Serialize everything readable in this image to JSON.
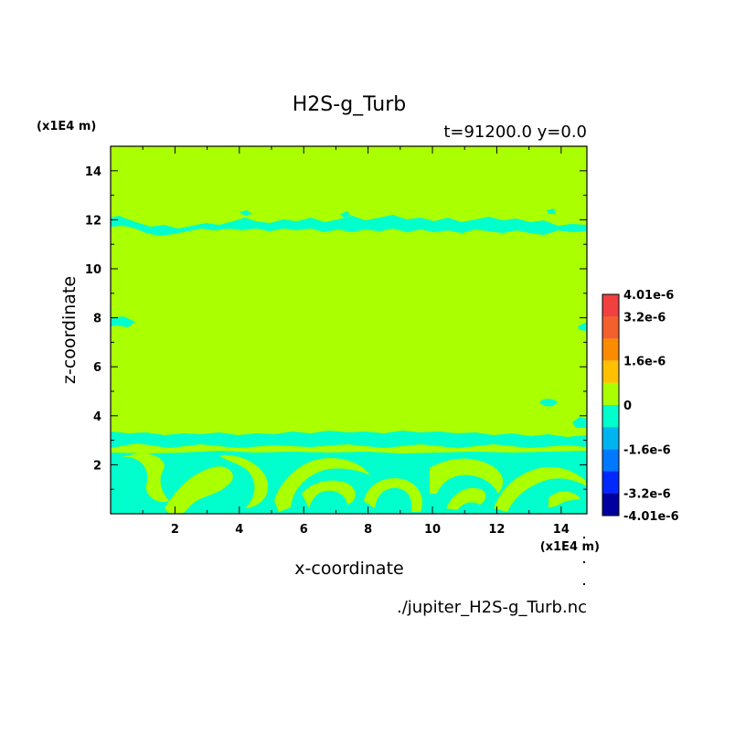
{
  "chart_data": {
    "type": "heatmap",
    "title": "H2S-g_Turb",
    "subtitle": "t=91200.0 y=0.0",
    "xlabel": "x-coordinate",
    "ylabel": "z-coordinate",
    "x_unit": "(x1E4 m)",
    "y_unit": "(x1E4 m)",
    "source": "./jupiter_H2S-g_Turb.nc",
    "xlim": [
      0,
      14.8
    ],
    "ylim": [
      0,
      15
    ],
    "x_ticks": [
      2,
      4,
      6,
      8,
      10,
      12,
      14
    ],
    "y_ticks": [
      2,
      4,
      6,
      8,
      10,
      12,
      14
    ],
    "grid": false,
    "background_level": 0,
    "colorbar": {
      "min": -4.01e-06,
      "max": 4.01e-06,
      "labels": [
        "4.01e-6",
        "3.2e-6",
        "1.6e-6",
        "0",
        "-1.6e-6",
        "-3.2e-6",
        "-4.01e-6"
      ],
      "label_values": [
        4.01e-06,
        3.2e-06,
        1.6e-06,
        0,
        -1.6e-06,
        -3.2e-06,
        -4.01e-06
      ],
      "bands": [
        {
          "from": 3.2e-06,
          "to": 4.01e-06,
          "color": "#f04040"
        },
        {
          "from": 2.4e-06,
          "to": 3.2e-06,
          "color": "#f4602c"
        },
        {
          "from": 1.6e-06,
          "to": 2.4e-06,
          "color": "#fb8c00"
        },
        {
          "from": 8e-07,
          "to": 1.6e-06,
          "color": "#ffc000"
        },
        {
          "from": 0,
          "to": 8e-07,
          "color": "#aaff00"
        },
        {
          "from": -8e-07,
          "to": 0,
          "color": "#00ffcc"
        },
        {
          "from": -1.6e-06,
          "to": -8e-07,
          "color": "#00b4f0"
        },
        {
          "from": -2.4e-06,
          "to": -1.6e-06,
          "color": "#0078ff"
        },
        {
          "from": -3.2e-06,
          "to": -2.4e-06,
          "color": "#0028ff"
        },
        {
          "from": -4.01e-06,
          "to": -3.2e-06,
          "color": "#0000a0"
        }
      ]
    },
    "colors": {
      "positive_band": "#aaff00",
      "negative_band": "#00ffcc"
    }
  }
}
